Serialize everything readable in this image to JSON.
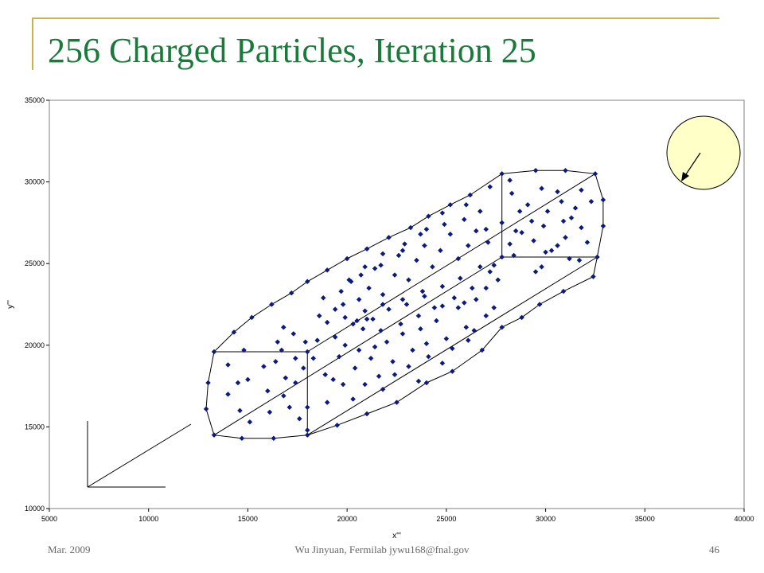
{
  "slide": {
    "title": "256 Charged Particles, Iteration 25",
    "footer_left": "Mar. 2009",
    "footer_center": "Wu Jinyuan, Fermilab jywu168@fnal.gov",
    "footer_right": "46"
  },
  "colors": {
    "title": "#1a7a3a",
    "accent_line": "#c8b255",
    "marker": "#0a1a80",
    "circle_fill": "#ffffc8"
  },
  "chart_data": {
    "type": "scatter",
    "title": "",
    "xlabel": "x'''",
    "ylabel": "y'''",
    "xlim": [
      5000,
      40000
    ],
    "ylim": [
      10000,
      35000
    ],
    "xticks": [
      "5000",
      "10000",
      "15000",
      "20000",
      "25000",
      "30000",
      "35000",
      "40000"
    ],
    "yticks": [
      "10000",
      "15000",
      "20000",
      "25000",
      "30000",
      "35000"
    ],
    "grid": false,
    "legend": "none",
    "series": [
      {
        "marker": "diamond",
        "points": [
          [
            13000,
            17700
          ],
          [
            12900,
            16100
          ],
          [
            13300,
            14500
          ],
          [
            14700,
            14300
          ],
          [
            16300,
            14300
          ],
          [
            18000,
            14500
          ],
          [
            19500,
            15100
          ],
          [
            21000,
            15800
          ],
          [
            22500,
            16500
          ],
          [
            24000,
            17700
          ],
          [
            25300,
            18400
          ],
          [
            26800,
            19700
          ],
          [
            27800,
            21100
          ],
          [
            28800,
            21700
          ],
          [
            29700,
            22500
          ],
          [
            30900,
            23300
          ],
          [
            32400,
            24200
          ],
          [
            13300,
            19600
          ],
          [
            14300,
            20800
          ],
          [
            15200,
            21700
          ],
          [
            16200,
            22500
          ],
          [
            17200,
            23200
          ],
          [
            18000,
            23900
          ],
          [
            19000,
            24600
          ],
          [
            20000,
            25300
          ],
          [
            21000,
            25900
          ],
          [
            22100,
            26600
          ],
          [
            23200,
            27200
          ],
          [
            24100,
            27900
          ],
          [
            25200,
            28600
          ],
          [
            26200,
            29200
          ],
          [
            27200,
            29700
          ],
          [
            28200,
            30100
          ],
          [
            29500,
            30700
          ],
          [
            31000,
            30700
          ],
          [
            32500,
            30500
          ],
          [
            32900,
            28900
          ],
          [
            32900,
            27300
          ],
          [
            32600,
            25400
          ],
          [
            27800,
            30500
          ],
          [
            27800,
            27500
          ],
          [
            27800,
            25400
          ],
          [
            14800,
            19700
          ],
          [
            16700,
            19700
          ],
          [
            18000,
            19600
          ],
          [
            18000,
            16200
          ],
          [
            18000,
            14800
          ],
          [
            14000,
            18800
          ],
          [
            14000,
            17000
          ],
          [
            14500,
            17700
          ],
          [
            14600,
            16000
          ],
          [
            15000,
            17900
          ],
          [
            15100,
            15300
          ],
          [
            15800,
            18700
          ],
          [
            16000,
            17200
          ],
          [
            16100,
            15900
          ],
          [
            16400,
            19000
          ],
          [
            16900,
            18000
          ],
          [
            16800,
            16900
          ],
          [
            17100,
            16200
          ],
          [
            17400,
            19200
          ],
          [
            17400,
            17700
          ],
          [
            17600,
            15500
          ],
          [
            17800,
            18600
          ],
          [
            17900,
            20200
          ],
          [
            17300,
            20700
          ],
          [
            16800,
            21100
          ],
          [
            16500,
            20200
          ],
          [
            19000,
            21400
          ],
          [
            19400,
            20500
          ],
          [
            19600,
            19300
          ],
          [
            19800,
            17600
          ],
          [
            20400,
            18600
          ],
          [
            20600,
            19700
          ],
          [
            20800,
            21000
          ],
          [
            21200,
            19200
          ],
          [
            21600,
            18100
          ],
          [
            22000,
            20200
          ],
          [
            22300,
            19000
          ],
          [
            22800,
            20700
          ],
          [
            23300,
            19700
          ],
          [
            23700,
            21000
          ],
          [
            24000,
            20100
          ],
          [
            24500,
            21500
          ],
          [
            25000,
            20400
          ],
          [
            25600,
            22300
          ],
          [
            26000,
            21100
          ],
          [
            26500,
            22800
          ],
          [
            27000,
            23500
          ],
          [
            27400,
            22300
          ],
          [
            27600,
            24000
          ],
          [
            18600,
            21800
          ],
          [
            18800,
            22900
          ],
          [
            19400,
            22200
          ],
          [
            19700,
            23300
          ],
          [
            20200,
            23900
          ],
          [
            20600,
            22800
          ],
          [
            21100,
            23500
          ],
          [
            21400,
            24700
          ],
          [
            21800,
            23100
          ],
          [
            22400,
            24300
          ],
          [
            22600,
            25500
          ],
          [
            23100,
            24000
          ],
          [
            23500,
            25200
          ],
          [
            23900,
            26100
          ],
          [
            24300,
            24800
          ],
          [
            24700,
            25800
          ],
          [
            25200,
            26800
          ],
          [
            25600,
            25300
          ],
          [
            26100,
            26100
          ],
          [
            26500,
            27000
          ],
          [
            27100,
            26300
          ],
          [
            27400,
            24900
          ],
          [
            29100,
            28600
          ],
          [
            29300,
            27600
          ],
          [
            29800,
            29600
          ],
          [
            30100,
            28200
          ],
          [
            30600,
            29400
          ],
          [
            30900,
            27600
          ],
          [
            31500,
            28400
          ],
          [
            31800,
            27200
          ],
          [
            30600,
            26100
          ],
          [
            29400,
            26400
          ],
          [
            28500,
            27000
          ],
          [
            28300,
            29300
          ],
          [
            30000,
            25700
          ],
          [
            31200,
            25300
          ],
          [
            19000,
            16500
          ],
          [
            19300,
            17900
          ],
          [
            20300,
            16700
          ],
          [
            20900,
            17600
          ],
          [
            21400,
            19900
          ],
          [
            21800,
            17300
          ],
          [
            22400,
            18200
          ],
          [
            23100,
            18700
          ],
          [
            23600,
            17800
          ],
          [
            24100,
            19300
          ],
          [
            24800,
            18900
          ],
          [
            25300,
            19800
          ],
          [
            26100,
            20300
          ],
          [
            26400,
            20900
          ],
          [
            27000,
            21800
          ],
          [
            25900,
            22600
          ],
          [
            24800,
            22400
          ],
          [
            23900,
            23000
          ],
          [
            23000,
            22500
          ],
          [
            22100,
            22200
          ],
          [
            21300,
            21600
          ],
          [
            20500,
            21500
          ],
          [
            19800,
            22500
          ],
          [
            20100,
            24000
          ],
          [
            20900,
            24800
          ],
          [
            21800,
            25600
          ],
          [
            22900,
            26200
          ],
          [
            24000,
            27100
          ],
          [
            24900,
            27400
          ],
          [
            25900,
            27700
          ],
          [
            26700,
            28200
          ],
          [
            27000,
            27100
          ],
          [
            26000,
            28600
          ],
          [
            24800,
            28100
          ],
          [
            23700,
            26800
          ],
          [
            22800,
            25800
          ],
          [
            21700,
            24900
          ],
          [
            20700,
            24300
          ],
          [
            18300,
            19200
          ],
          [
            18500,
            20300
          ],
          [
            18900,
            18200
          ],
          [
            19900,
            20000
          ],
          [
            20300,
            21300
          ],
          [
            21000,
            21600
          ],
          [
            21700,
            20900
          ],
          [
            22700,
            21300
          ],
          [
            23600,
            21800
          ],
          [
            24400,
            22300
          ],
          [
            25400,
            22900
          ],
          [
            26300,
            23500
          ],
          [
            27200,
            24500
          ],
          [
            26700,
            24800
          ],
          [
            25700,
            24100
          ],
          [
            24800,
            23600
          ],
          [
            23800,
            23300
          ],
          [
            22800,
            22800
          ],
          [
            21800,
            22500
          ],
          [
            20900,
            22100
          ],
          [
            19900,
            21700
          ],
          [
            29500,
            24500
          ],
          [
            30300,
            25800
          ],
          [
            31000,
            26600
          ],
          [
            31700,
            25200
          ],
          [
            32100,
            26300
          ],
          [
            28200,
            26200
          ],
          [
            28800,
            26900
          ],
          [
            29800,
            24800
          ],
          [
            31300,
            27800
          ],
          [
            32300,
            28800
          ],
          [
            28700,
            28200
          ],
          [
            29900,
            27300
          ],
          [
            30800,
            28800
          ],
          [
            31800,
            29500
          ],
          [
            28400,
            25500
          ]
        ]
      }
    ],
    "outline": {
      "front_hexagon": [
        [
          13000,
          17700
        ],
        [
          12900,
          16100
        ],
        [
          13300,
          14500
        ],
        [
          14700,
          14300
        ],
        [
          16300,
          14300
        ],
        [
          18000,
          14500
        ],
        [
          19500,
          15100
        ],
        [
          21000,
          15800
        ],
        [
          22500,
          16500
        ],
        [
          24000,
          17700
        ],
        [
          25300,
          18400
        ],
        [
          26800,
          19700
        ],
        [
          27800,
          21100
        ],
        [
          28800,
          21700
        ],
        [
          29700,
          22500
        ],
        [
          30900,
          23300
        ],
        [
          32400,
          24200
        ],
        [
          32600,
          25400
        ],
        [
          32900,
          27300
        ],
        [
          32900,
          28900
        ],
        [
          32500,
          30500
        ],
        [
          31000,
          30700
        ],
        [
          29500,
          30700
        ],
        [
          27800,
          30500
        ],
        [
          26200,
          29200
        ],
        [
          25200,
          28600
        ],
        [
          24100,
          27900
        ],
        [
          23200,
          27200
        ],
        [
          22100,
          26600
        ],
        [
          21000,
          25900
        ],
        [
          20000,
          25300
        ],
        [
          19000,
          24600
        ],
        [
          18000,
          23900
        ],
        [
          17200,
          23200
        ],
        [
          16200,
          22500
        ],
        [
          15200,
          21700
        ],
        [
          14300,
          20800
        ],
        [
          13300,
          19600
        ],
        [
          13000,
          17700
        ]
      ],
      "box_lines": [
        [
          [
            13300,
            19600
          ],
          [
            18000,
            19600
          ]
        ],
        [
          [
            18000,
            19600
          ],
          [
            18000,
            14500
          ]
        ],
        [
          [
            13300,
            14500
          ],
          [
            27800,
            25400
          ]
        ],
        [
          [
            18000,
            19600
          ],
          [
            32500,
            30500
          ]
        ],
        [
          [
            18000,
            14500
          ],
          [
            32600,
            25400
          ]
        ],
        [
          [
            27800,
            25400
          ],
          [
            32600,
            25400
          ]
        ],
        [
          [
            27800,
            25400
          ],
          [
            27800,
            30500
          ]
        ]
      ]
    }
  }
}
